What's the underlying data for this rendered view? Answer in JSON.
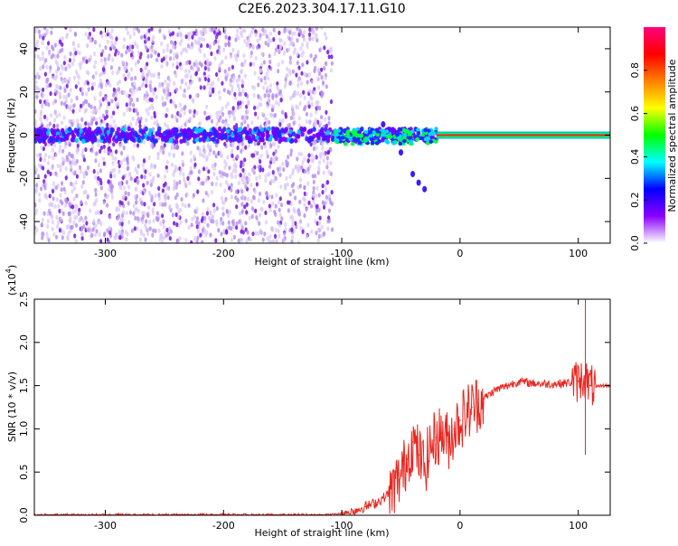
{
  "title": "C2E6.2023.304.17.11.G10",
  "colors": {
    "signal_line": "#e8261f",
    "noise_purple": "#7b1fe0",
    "axis": "#000000"
  },
  "chart_data": [
    {
      "type": "heatmap",
      "title": "C2E6.2023.304.17.11.G10",
      "xlabel": "Height of straight line (km)",
      "ylabel": "Frequency (Hz)",
      "xlim": [
        -360,
        127
      ],
      "ylim": [
        -50,
        50
      ],
      "x_ticks": [
        -300,
        -200,
        -100,
        0,
        100
      ],
      "x_tick_labels": [
        "-300",
        "-200",
        "-100",
        "0",
        "100"
      ],
      "y_ticks": [
        -40,
        -20,
        0,
        20,
        40
      ],
      "y_tick_labels": [
        "-40",
        "-20",
        "0",
        "20",
        "40"
      ],
      "noise_region_x": [
        -360,
        -108
      ],
      "signal_band_hz": 0,
      "signal_line_start_x": -20,
      "doppler_branch": {
        "x": [
          -65,
          -50,
          -40,
          -35,
          -30
        ],
        "y": [
          5,
          -8,
          -18,
          -22,
          -25
        ]
      },
      "colorbar": {
        "label": "Normalized spectral amplitude",
        "range": [
          0.0,
          1.0
        ],
        "ticks": [
          0.0,
          0.2,
          0.4,
          0.6,
          0.8
        ],
        "tick_labels": [
          "0.0",
          "0.2",
          "0.4",
          "0.6",
          "0.8"
        ],
        "colormap": [
          "#ffffff",
          "#8a00ff",
          "#0000ff",
          "#00ffff",
          "#00ff00",
          "#ffff00",
          "#ff8000",
          "#ff0000",
          "#ff007f"
        ]
      },
      "grid": false
    },
    {
      "type": "line",
      "xlabel": "Height of straight line (km)",
      "ylabel": "SNR (10 * v/v)",
      "y_scale_label": "(x10",
      "y_scale_exponent": "4",
      "y_scale_suffix": ")",
      "xlim": [
        -360,
        127
      ],
      "ylim": [
        0,
        2.5
      ],
      "x_ticks": [
        -300,
        -200,
        -100,
        0,
        100
      ],
      "x_tick_labels": [
        "-300",
        "-200",
        "-100",
        "0",
        "100"
      ],
      "y_ticks": [
        0.0,
        0.5,
        1.0,
        1.5,
        2.0,
        2.5
      ],
      "y_tick_labels": [
        "0.0",
        "0.5",
        "1.0",
        "1.5",
        "2.0",
        "2.5"
      ],
      "series": [
        {
          "color": "#e8261f",
          "x": [
            -360,
            -300,
            -200,
            -120,
            -100,
            -90,
            -80,
            -70,
            -60,
            -50,
            -45,
            -40,
            -35,
            -30,
            -25,
            -20,
            -15,
            -10,
            -5,
            0,
            10,
            20,
            30,
            40,
            50,
            60,
            70,
            80,
            90,
            100,
            105,
            110,
            115,
            120,
            127
          ],
          "y": [
            0.0,
            0.0,
            0.0,
            0.0,
            0.02,
            0.05,
            0.1,
            0.15,
            0.25,
            0.45,
            0.65,
            0.85,
            0.7,
            0.55,
            0.8,
            0.9,
            0.95,
            0.85,
            1.0,
            1.1,
            1.25,
            1.35,
            1.45,
            1.5,
            1.55,
            1.53,
            1.52,
            1.52,
            1.53,
            1.55,
            1.6,
            1.5,
            1.48,
            1.5,
            1.5
          ]
        }
      ],
      "grid": false
    }
  ]
}
